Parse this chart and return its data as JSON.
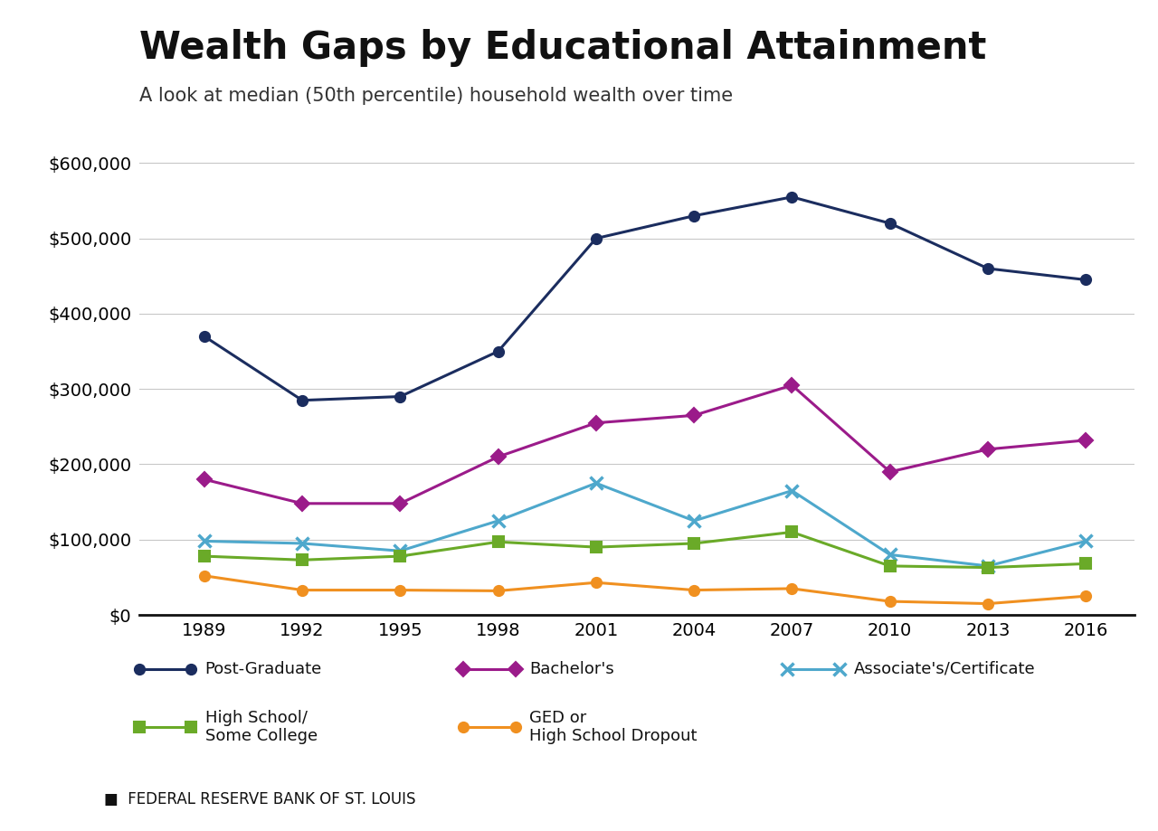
{
  "title": "Wealth Gaps by Educational Attainment",
  "subtitle": "A look at median (50th percentile) household wealth over time",
  "source": "FEDERAL RESERVE BANK OF ST. LOUIS",
  "years": [
    1989,
    1992,
    1995,
    1998,
    2001,
    2004,
    2007,
    2010,
    2013,
    2016
  ],
  "series": [
    {
      "name": "Post-Graduate",
      "values": [
        370000,
        285000,
        290000,
        350000,
        500000,
        530000,
        555000,
        520000,
        460000,
        445000
      ],
      "color": "#1b2d5f",
      "marker": "o",
      "markersize": 8,
      "markeredgewidth": 1.5
    },
    {
      "name": "Bachelor's",
      "values": [
        180000,
        148000,
        148000,
        210000,
        255000,
        265000,
        305000,
        190000,
        220000,
        232000
      ],
      "color": "#9b1b8a",
      "marker": "D",
      "markersize": 8,
      "markeredgewidth": 1.5
    },
    {
      "name": "Associate's/Certificate",
      "values": [
        98000,
        95000,
        85000,
        125000,
        175000,
        125000,
        165000,
        80000,
        65000,
        98000
      ],
      "color": "#4ea8cc",
      "marker": "x",
      "markersize": 10,
      "markeredgewidth": 2.5
    },
    {
      "name": "High School/\nSome College",
      "values": [
        78000,
        73000,
        78000,
        97000,
        90000,
        95000,
        110000,
        65000,
        63000,
        68000
      ],
      "color": "#6aaa28",
      "marker": "s",
      "markersize": 8,
      "markeredgewidth": 1.5
    },
    {
      "name": "GED or\nHigh School Dropout",
      "values": [
        52000,
        33000,
        33000,
        32000,
        43000,
        33000,
        35000,
        18000,
        15000,
        25000
      ],
      "color": "#f09020",
      "marker": "o",
      "markersize": 8,
      "markeredgewidth": 1.5
    }
  ],
  "ylim": [
    0,
    640000
  ],
  "yticks": [
    0,
    100000,
    200000,
    300000,
    400000,
    500000,
    600000
  ],
  "xlim": [
    1987.0,
    2017.5
  ],
  "background_color": "#ffffff",
  "grid_color": "#c8c8c8",
  "title_fontsize": 30,
  "subtitle_fontsize": 15,
  "tick_fontsize": 14,
  "legend_fontsize": 13,
  "source_fontsize": 12
}
